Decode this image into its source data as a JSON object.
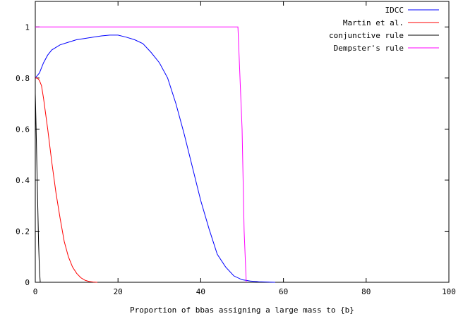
{
  "chart_data": {
    "type": "line",
    "xlabel": "Proportion of bbas assigning a large mass to {b}",
    "ylabel": "",
    "xlim": [
      0,
      100
    ],
    "ylim": [
      0,
      1.1
    ],
    "xticks": [
      0,
      20,
      40,
      60,
      80,
      100
    ],
    "yticks": [
      0,
      0.2,
      0.4,
      0.6,
      0.8,
      1
    ],
    "ytick_labels": [
      "0",
      "0.2",
      "0.4",
      "0.6",
      "0.8",
      "1"
    ],
    "grid": false,
    "legend_position": "top-right",
    "series": [
      {
        "name": "IDCC",
        "color": "#0000ff",
        "x": [
          0,
          1,
          2,
          3,
          4,
          5,
          6,
          8,
          10,
          12,
          14,
          16,
          18,
          20,
          22,
          24,
          26,
          28,
          30,
          32,
          34,
          36,
          38,
          40,
          42,
          44,
          46,
          48,
          50,
          52,
          54,
          56,
          58
        ],
        "y": [
          0.8,
          0.82,
          0.86,
          0.89,
          0.91,
          0.92,
          0.93,
          0.94,
          0.95,
          0.955,
          0.96,
          0.965,
          0.968,
          0.968,
          0.96,
          0.95,
          0.935,
          0.9,
          0.86,
          0.8,
          0.7,
          0.58,
          0.45,
          0.32,
          0.21,
          0.11,
          0.06,
          0.025,
          0.01,
          0.005,
          0.002,
          0.001,
          0.0
        ]
      },
      {
        "name": "Martin et al.",
        "color": "#ff0000",
        "x": [
          0,
          0.5,
          1,
          1.5,
          2,
          3,
          4,
          5,
          6,
          7,
          8,
          9,
          10,
          11,
          12,
          13,
          14,
          15
        ],
        "y": [
          0.8,
          0.8,
          0.79,
          0.77,
          0.72,
          0.6,
          0.47,
          0.35,
          0.25,
          0.16,
          0.1,
          0.06,
          0.035,
          0.018,
          0.008,
          0.003,
          0.001,
          0.0
        ]
      },
      {
        "name": "conjunctive rule",
        "color": "#000000",
        "x": [
          0,
          0.2,
          0.4,
          0.6,
          0.8,
          1.0,
          1.2
        ],
        "y": [
          0.74,
          0.6,
          0.45,
          0.3,
          0.15,
          0.05,
          0.0
        ]
      },
      {
        "name": "Dempster's rule",
        "color": "#ff00ff",
        "x": [
          0,
          10,
          20,
          30,
          40,
          49,
          50,
          50.5,
          51
        ],
        "y": [
          1.0,
          1.0,
          1.0,
          1.0,
          1.0,
          1.0,
          0.6,
          0.2,
          0.0
        ]
      }
    ]
  }
}
